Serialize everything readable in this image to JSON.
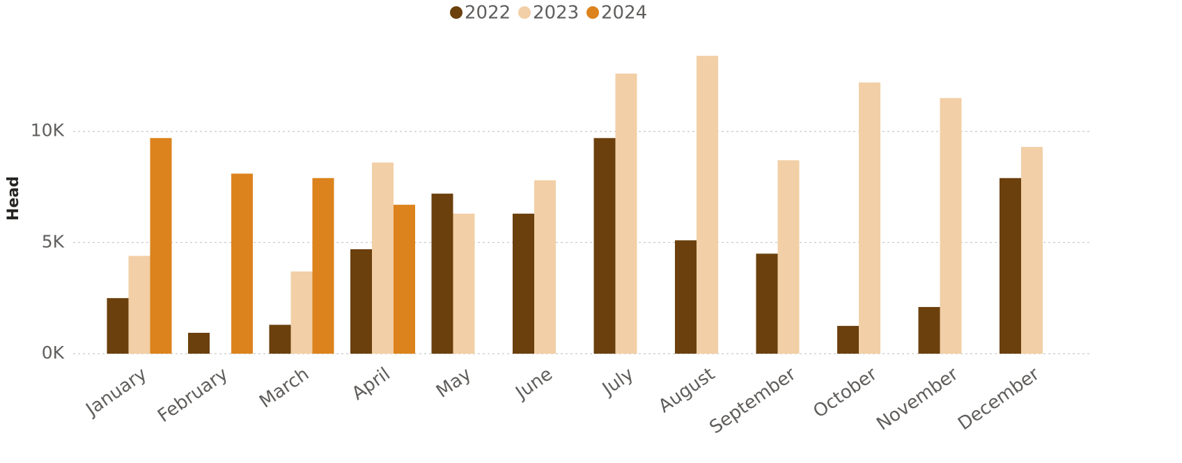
{
  "chart_data": {
    "type": "bar",
    "y_label": "Head",
    "categories": [
      "January",
      "February",
      "March",
      "April",
      "May",
      "June",
      "July",
      "August",
      "September",
      "October",
      "November",
      "December"
    ],
    "series": [
      {
        "name": "2022",
        "color": "#6b400d",
        "values": [
          2500,
          940,
          1300,
          4700,
          7200,
          6300,
          9700,
          5100,
          4500,
          1250,
          2100,
          7900
        ]
      },
      {
        "name": "2023",
        "color": "#f2cfa6",
        "values": [
          4400,
          null,
          3700,
          8600,
          6300,
          7800,
          12600,
          13400,
          8700,
          12200,
          11500,
          9300
        ]
      },
      {
        "name": "2024",
        "color": "#dc831d",
        "values": [
          9700,
          8100,
          7900,
          6700,
          null,
          null,
          null,
          null,
          null,
          null,
          null,
          null
        ]
      }
    ],
    "ylim": [
      0,
      14000
    ],
    "yticks": [
      {
        "value": 0,
        "label": "0K"
      },
      {
        "value": 5000,
        "label": "5K"
      },
      {
        "value": 10000,
        "label": "10K"
      }
    ],
    "grid": true,
    "legend": "top"
  }
}
